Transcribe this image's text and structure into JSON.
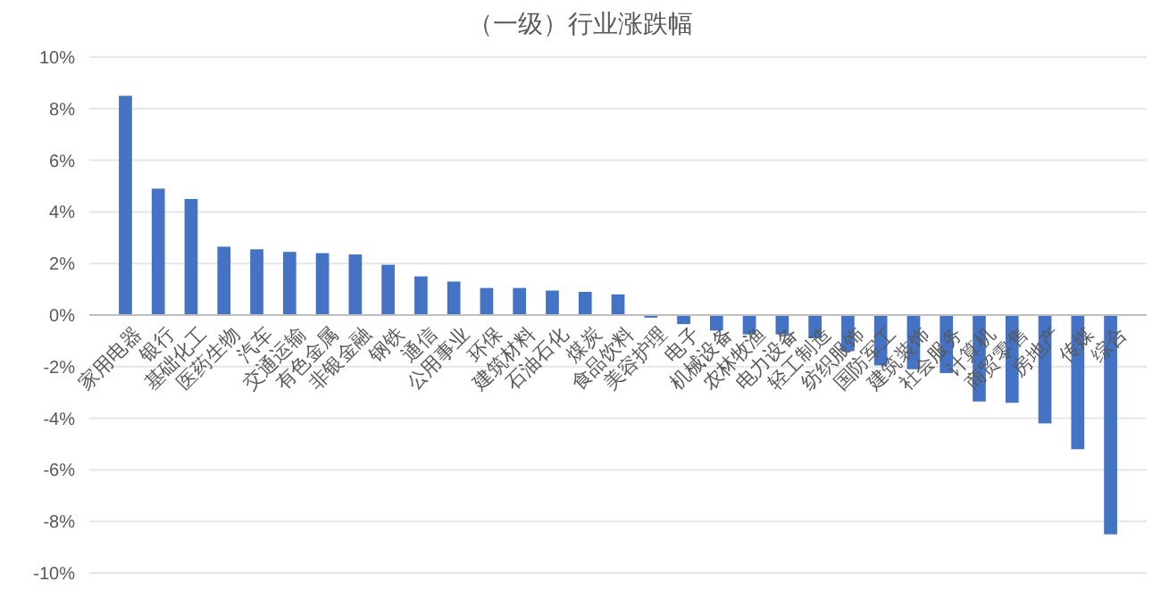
{
  "chart_data": {
    "type": "bar",
    "title": "（一级）行业涨跌幅",
    "categories": [
      "家用电器",
      "银行",
      "基础化工",
      "医药生物",
      "汽车",
      "交通运输",
      "有色金属",
      "非银金融",
      "钢铁",
      "通信",
      "公用事业",
      "环保",
      "建筑材料",
      "石油石化",
      "煤炭",
      "食品饮料",
      "美容护理",
      "电子",
      "机械设备",
      "农林牧渔",
      "电力设备",
      "轻工制造",
      "纺织服饰",
      "国防军工",
      "建筑装饰",
      "社会服务",
      "计算机",
      "商贸零售",
      "房地产",
      "传媒",
      "综合"
    ],
    "values": [
      8.5,
      4.9,
      4.5,
      2.65,
      2.55,
      2.45,
      2.4,
      2.35,
      1.95,
      1.5,
      1.3,
      1.05,
      1.05,
      0.95,
      0.9,
      0.8,
      -0.1,
      -0.35,
      -0.6,
      -0.75,
      -0.75,
      -0.9,
      -1.4,
      -1.95,
      -2.1,
      -2.25,
      -3.35,
      -3.4,
      -4.2,
      -5.2,
      -8.5
    ],
    "color": "#4472c4",
    "ylim": [
      -10,
      10
    ],
    "yticks": [
      {
        "value": -10,
        "label": "-10%"
      },
      {
        "value": -8,
        "label": "-8%"
      },
      {
        "value": -6,
        "label": "-6%"
      },
      {
        "value": -4,
        "label": "-4%"
      },
      {
        "value": -2,
        "label": "-2%"
      },
      {
        "value": 0,
        "label": "0%"
      },
      {
        "value": 2,
        "label": "2%"
      },
      {
        "value": 4,
        "label": "4%"
      },
      {
        "value": 6,
        "label": "6%"
      },
      {
        "value": 8,
        "label": "8%"
      },
      {
        "value": 10,
        "label": "10%"
      }
    ],
    "grid": "y"
  }
}
